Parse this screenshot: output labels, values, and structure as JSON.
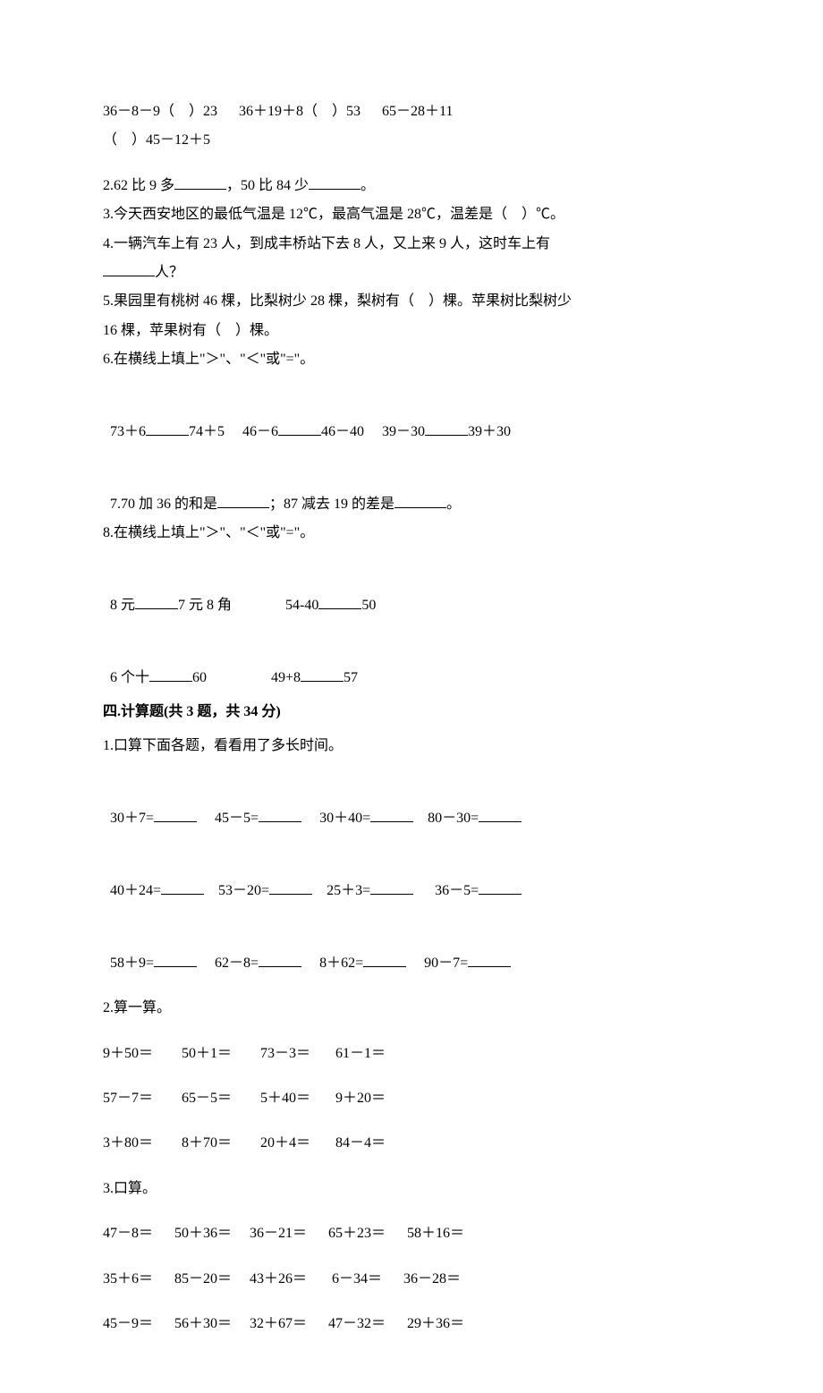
{
  "typography": {
    "body_fontsize_pt": 12,
    "title_fontsize_pt": 12,
    "font_family": "SimSun",
    "text_color": "#000000",
    "background_color": "#ffffff"
  },
  "top_block": {
    "line1": "36－8－9（    ）23      36＋19＋8（    ）53      65－28＋11",
    "line2": "（    ）45－12＋5"
  },
  "fill": {
    "q2_prefix": "2.62 比 9 多",
    "q2_mid": "，50 比 84 少",
    "q2_suffix": "。",
    "q3": "3.今天西安地区的最低气温是 12℃，最高气温是 28℃，温差是（    ）℃。",
    "q4_l1": "4.一辆汽车上有 23 人，到成丰桥站下去 8 人，又上来 9 人，这时车上有",
    "q4_l2_suffix": "人？",
    "q5_l1": "5.果园里有桃树 46 棵，比梨树少 28 棵，梨树有（    ）棵。苹果树比梨树少",
    "q5_l2": "16 棵，苹果树有（    ）棵。",
    "q6": "6.在横线上填上\"＞\"、\"＜\"或\"=\"。",
    "q6_row_a": "73＋6",
    "q6_row_b": "74＋5     46－6",
    "q6_row_c": "46－40     39－30",
    "q6_row_d": "39＋30",
    "q7_a": "7.70 加 36 的和是",
    "q7_b": "；87 减去 19 的差是",
    "q7_c": "。",
    "q8": "8.在横线上填上\"＞\"、\"＜\"或\"=\"。",
    "q8_r1_a": "8 元",
    "q8_r1_b": "7 元 8 角               54-40",
    "q8_r1_c": "50",
    "q8_r2_a": "6 个十",
    "q8_r2_b": "60                  49+8",
    "q8_r2_c": "57"
  },
  "section4_title": "四.计算题(共 3 题，共 34 分)",
  "calc": {
    "q1_title": "1.口算下面各题，看看用了多长时间。",
    "q1_rows": [
      {
        "a": "30＋7=",
        "b": "     45－5=",
        "c": "     30＋40=",
        "d": "    80－30="
      },
      {
        "a": "40＋24=",
        "b": "    53－20=",
        "c": "    25＋3=",
        "d": "      36－5="
      },
      {
        "a": "58＋9=",
        "b": "     62－8=",
        "c": "     8＋62=",
        "d": "     90－7="
      }
    ],
    "q2_title": "2.算一算。",
    "q2_rows": [
      "9＋50＝        50＋1＝        73－3＝       61－1＝",
      "57－7＝        65－5＝        5＋40＝       9＋20＝",
      "3＋80＝        8＋70＝        20＋4＝       84－4＝"
    ],
    "q3_title": "3.口算。",
    "q3_rows": [
      "47－8＝      50＋36＝     36－21＝      65＋23＝      58＋16＝",
      "35＋6＝      85－20＝     43＋26＝       6－34＝      36－28＝",
      "45－9＝      56＋30＝     32＋67＝      47－32＝      29＋36＝"
    ]
  }
}
